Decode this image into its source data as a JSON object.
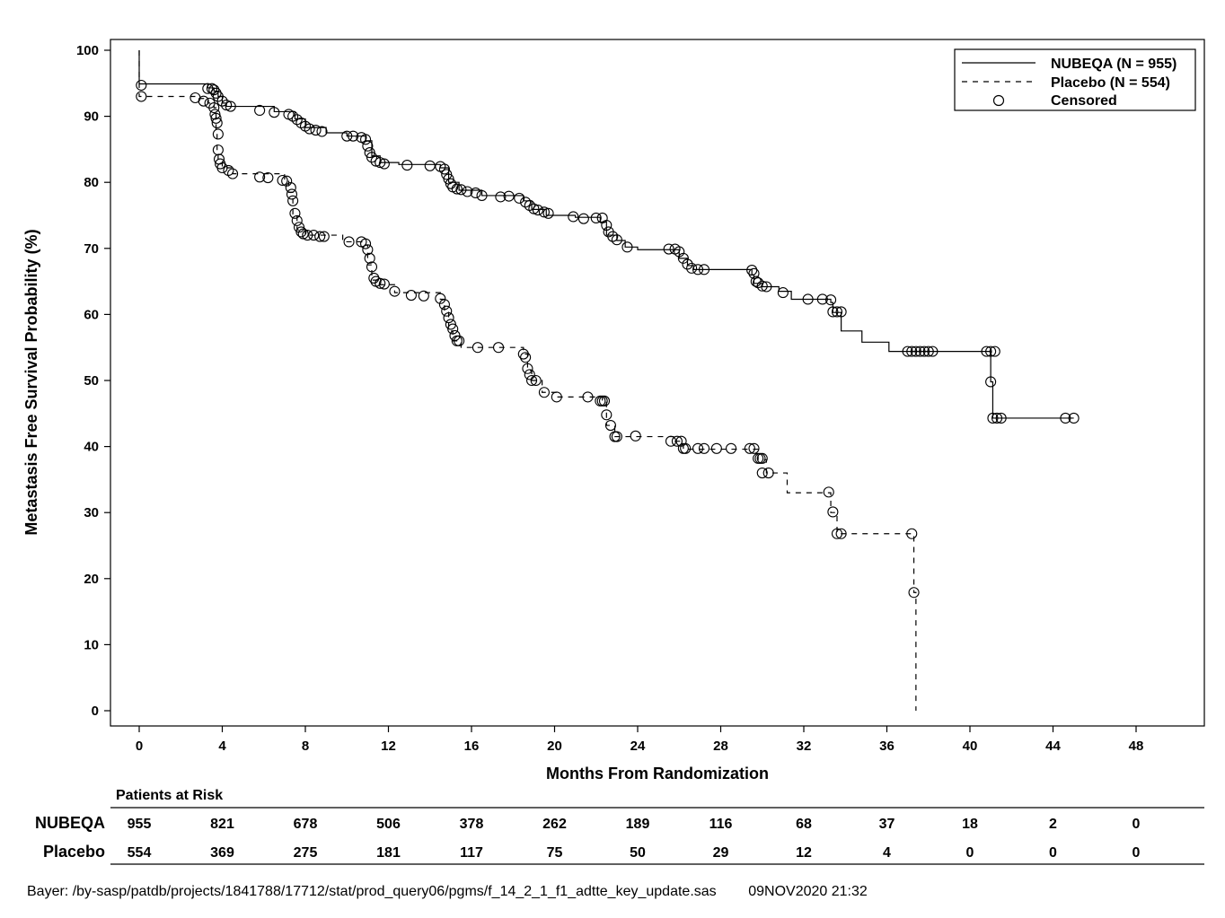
{
  "chart_data": {
    "type": "line",
    "xlabel": "Months From Randomization",
    "ylabel": "Metastasis Free Survival Probability (%)",
    "xlim": [
      0,
      48
    ],
    "ylim": [
      0,
      100
    ],
    "xticks": [
      0,
      4,
      8,
      12,
      16,
      20,
      24,
      28,
      32,
      36,
      40,
      44,
      48
    ],
    "yticks": [
      0,
      10,
      20,
      30,
      40,
      50,
      60,
      70,
      80,
      90,
      100
    ],
    "grid": false,
    "legend_position": "top-right",
    "legend": [
      {
        "label": "NUBEQA (N = 955)",
        "style": "solid"
      },
      {
        "label": "Placebo (N = 554)",
        "style": "dashed"
      },
      {
        "label": "Censored",
        "style": "circle"
      }
    ],
    "series": [
      {
        "name": "NUBEQA (N = 955)",
        "style": "solid",
        "steps": [
          [
            0,
            94.9
          ],
          [
            3.3,
            94.3
          ],
          [
            3.6,
            93.8
          ],
          [
            3.8,
            93.0
          ],
          [
            4.0,
            92.0
          ],
          [
            4.2,
            91.5
          ],
          [
            6.5,
            90.7
          ],
          [
            7.5,
            89.6
          ],
          [
            8.0,
            88.3
          ],
          [
            9.0,
            87.5
          ],
          [
            10.0,
            87.0
          ],
          [
            10.9,
            86.3
          ],
          [
            11.2,
            84.0
          ],
          [
            11.6,
            83.0
          ],
          [
            12.5,
            82.7
          ],
          [
            14.5,
            82.2
          ],
          [
            14.9,
            80.0
          ],
          [
            15.4,
            78.8
          ],
          [
            16.5,
            78.0
          ],
          [
            18.5,
            77.2
          ],
          [
            18.9,
            75.9
          ],
          [
            19.6,
            75.0
          ],
          [
            21.0,
            74.7
          ],
          [
            22.2,
            74.0
          ],
          [
            22.5,
            72.0
          ],
          [
            23.0,
            71.2
          ],
          [
            23.4,
            70.2
          ],
          [
            24.0,
            69.8
          ],
          [
            25.8,
            69.8
          ],
          [
            26.0,
            68.5
          ],
          [
            26.4,
            67.4
          ],
          [
            26.7,
            66.8
          ],
          [
            29.5,
            66.0
          ],
          [
            29.6,
            64.7
          ],
          [
            30.0,
            64.2
          ],
          [
            30.8,
            63.5
          ],
          [
            31.4,
            62.3
          ],
          [
            33.3,
            61.8
          ],
          [
            33.4,
            60.3
          ],
          [
            33.8,
            57.5
          ],
          [
            34.8,
            55.8
          ],
          [
            36.1,
            54.4
          ],
          [
            41.0,
            49.8
          ],
          [
            41.1,
            44.3
          ]
        ],
        "end_x": 45.0,
        "censored": [
          [
            0.1,
            94.7
          ],
          [
            3.3,
            94.2
          ],
          [
            3.5,
            94.2
          ],
          [
            3.6,
            94.0
          ],
          [
            3.7,
            93.5
          ],
          [
            3.8,
            93.0
          ],
          [
            4.0,
            92.3
          ],
          [
            4.2,
            91.7
          ],
          [
            4.4,
            91.5
          ],
          [
            5.8,
            90.9
          ],
          [
            6.5,
            90.6
          ],
          [
            7.2,
            90.3
          ],
          [
            7.4,
            90.0
          ],
          [
            7.6,
            89.5
          ],
          [
            7.8,
            89.0
          ],
          [
            8.0,
            88.5
          ],
          [
            8.2,
            88.1
          ],
          [
            8.5,
            87.9
          ],
          [
            8.8,
            87.7
          ],
          [
            10.0,
            87.0
          ],
          [
            10.3,
            87.0
          ],
          [
            10.7,
            86.8
          ],
          [
            10.9,
            86.5
          ],
          [
            11.0,
            85.5
          ],
          [
            11.1,
            84.5
          ],
          [
            11.2,
            83.8
          ],
          [
            11.4,
            83.2
          ],
          [
            11.6,
            83.0
          ],
          [
            11.8,
            82.8
          ],
          [
            12.9,
            82.6
          ],
          [
            14.0,
            82.5
          ],
          [
            14.5,
            82.4
          ],
          [
            14.7,
            82.0
          ],
          [
            14.8,
            81.2
          ],
          [
            14.9,
            80.5
          ],
          [
            15.0,
            79.8
          ],
          [
            15.1,
            79.3
          ],
          [
            15.3,
            79.0
          ],
          [
            15.5,
            78.9
          ],
          [
            15.8,
            78.6
          ],
          [
            16.2,
            78.4
          ],
          [
            16.5,
            78.0
          ],
          [
            17.4,
            77.8
          ],
          [
            17.8,
            77.9
          ],
          [
            18.3,
            77.6
          ],
          [
            18.6,
            77.0
          ],
          [
            18.8,
            76.5
          ],
          [
            19.0,
            76.0
          ],
          [
            19.2,
            75.8
          ],
          [
            19.5,
            75.5
          ],
          [
            19.7,
            75.3
          ],
          [
            20.9,
            74.8
          ],
          [
            21.4,
            74.5
          ],
          [
            22.0,
            74.6
          ],
          [
            22.3,
            74.6
          ],
          [
            22.5,
            73.5
          ],
          [
            22.6,
            72.5
          ],
          [
            22.8,
            71.8
          ],
          [
            23.0,
            71.3
          ],
          [
            23.5,
            70.2
          ],
          [
            25.5,
            69.9
          ],
          [
            25.8,
            69.9
          ],
          [
            26.0,
            69.5
          ],
          [
            26.2,
            68.5
          ],
          [
            26.4,
            67.6
          ],
          [
            26.6,
            67.0
          ],
          [
            26.9,
            66.8
          ],
          [
            27.2,
            66.8
          ],
          [
            29.5,
            66.7
          ],
          [
            29.6,
            66.2
          ],
          [
            29.7,
            65.0
          ],
          [
            29.8,
            64.8
          ],
          [
            30.0,
            64.3
          ],
          [
            30.2,
            64.2
          ],
          [
            31.0,
            63.3
          ],
          [
            32.2,
            62.3
          ],
          [
            32.9,
            62.3
          ],
          [
            33.3,
            62.2
          ],
          [
            33.4,
            60.4
          ],
          [
            33.6,
            60.4
          ],
          [
            33.8,
            60.4
          ],
          [
            37.0,
            54.4
          ],
          [
            37.2,
            54.4
          ],
          [
            37.4,
            54.4
          ],
          [
            37.6,
            54.4
          ],
          [
            37.8,
            54.4
          ],
          [
            38.0,
            54.4
          ],
          [
            38.2,
            54.4
          ],
          [
            40.8,
            54.4
          ],
          [
            41.0,
            54.4
          ],
          [
            41.2,
            54.4
          ],
          [
            41.0,
            49.8
          ],
          [
            41.1,
            44.3
          ],
          [
            41.3,
            44.3
          ],
          [
            41.5,
            44.3
          ],
          [
            44.6,
            44.3
          ],
          [
            45.0,
            44.3
          ]
        ]
      },
      {
        "name": "Placebo (N = 554)",
        "style": "dashed",
        "steps": [
          [
            0,
            93.0
          ],
          [
            2.8,
            92.7
          ],
          [
            3.3,
            92.0
          ],
          [
            3.6,
            91.3
          ],
          [
            3.7,
            88.0
          ],
          [
            3.75,
            84.8
          ],
          [
            3.8,
            83.5
          ],
          [
            4.0,
            82.2
          ],
          [
            4.5,
            81.3
          ],
          [
            7.0,
            80.3
          ],
          [
            7.2,
            78.5
          ],
          [
            7.4,
            75.2
          ],
          [
            7.6,
            72.8
          ],
          [
            8.0,
            72.0
          ],
          [
            9.8,
            71.0
          ],
          [
            10.8,
            70.5
          ],
          [
            11.0,
            67.5
          ],
          [
            11.2,
            65.2
          ],
          [
            11.5,
            64.5
          ],
          [
            12.3,
            63.3
          ],
          [
            14.5,
            62.3
          ],
          [
            14.7,
            60.5
          ],
          [
            14.9,
            57.5
          ],
          [
            15.1,
            56.0
          ],
          [
            15.5,
            55.0
          ],
          [
            18.5,
            54.0
          ],
          [
            18.7,
            51.5
          ],
          [
            18.9,
            50.0
          ],
          [
            19.4,
            48.2
          ],
          [
            20.1,
            47.5
          ],
          [
            22.3,
            46.8
          ],
          [
            22.5,
            43.2
          ],
          [
            22.9,
            41.5
          ],
          [
            25.8,
            40.8
          ],
          [
            26.2,
            39.6
          ],
          [
            29.8,
            38.0
          ],
          [
            30.2,
            36.0
          ],
          [
            31.2,
            33.0
          ],
          [
            33.3,
            30.0
          ],
          [
            33.6,
            26.8
          ],
          [
            37.3,
            17.9
          ],
          [
            37.4,
            0.0
          ]
        ],
        "end_x": 37.4,
        "censored": [
          [
            0.1,
            93.0
          ],
          [
            2.7,
            92.8
          ],
          [
            3.1,
            92.3
          ],
          [
            3.4,
            92.0
          ],
          [
            3.6,
            91.3
          ],
          [
            3.65,
            90.3
          ],
          [
            3.7,
            89.7
          ],
          [
            3.75,
            89.0
          ],
          [
            3.8,
            87.3
          ],
          [
            3.8,
            84.9
          ],
          [
            3.85,
            83.5
          ],
          [
            3.9,
            82.8
          ],
          [
            4.0,
            82.2
          ],
          [
            4.3,
            81.8
          ],
          [
            4.5,
            81.3
          ],
          [
            5.8,
            80.8
          ],
          [
            6.2,
            80.7
          ],
          [
            6.9,
            80.3
          ],
          [
            7.1,
            80.2
          ],
          [
            7.3,
            79.2
          ],
          [
            7.35,
            78.2
          ],
          [
            7.4,
            77.2
          ],
          [
            7.5,
            75.3
          ],
          [
            7.6,
            74.2
          ],
          [
            7.7,
            73.2
          ],
          [
            7.8,
            72.5
          ],
          [
            7.9,
            72.2
          ],
          [
            8.1,
            72.0
          ],
          [
            8.4,
            72.0
          ],
          [
            8.7,
            71.8
          ],
          [
            8.9,
            71.8
          ],
          [
            10.1,
            71.0
          ],
          [
            10.7,
            71.0
          ],
          [
            10.9,
            70.7
          ],
          [
            11.0,
            69.8
          ],
          [
            11.1,
            68.5
          ],
          [
            11.2,
            67.2
          ],
          [
            11.3,
            65.5
          ],
          [
            11.4,
            65.0
          ],
          [
            11.6,
            64.7
          ],
          [
            11.8,
            64.6
          ],
          [
            12.3,
            63.5
          ],
          [
            13.1,
            62.9
          ],
          [
            13.7,
            62.8
          ],
          [
            14.5,
            62.4
          ],
          [
            14.7,
            61.5
          ],
          [
            14.8,
            60.5
          ],
          [
            14.9,
            59.5
          ],
          [
            15.0,
            58.5
          ],
          [
            15.1,
            57.8
          ],
          [
            15.2,
            56.8
          ],
          [
            15.3,
            56.0
          ],
          [
            15.4,
            56.0
          ],
          [
            16.3,
            55.0
          ],
          [
            17.3,
            55.0
          ],
          [
            18.5,
            54.0
          ],
          [
            18.6,
            53.5
          ],
          [
            18.7,
            51.8
          ],
          [
            18.8,
            50.9
          ],
          [
            18.9,
            50.0
          ],
          [
            19.1,
            50.0
          ],
          [
            19.5,
            48.2
          ],
          [
            20.1,
            47.5
          ],
          [
            21.6,
            47.5
          ],
          [
            22.2,
            46.9
          ],
          [
            22.3,
            46.9
          ],
          [
            22.4,
            46.9
          ],
          [
            22.5,
            44.8
          ],
          [
            22.7,
            43.2
          ],
          [
            22.9,
            41.5
          ],
          [
            23.0,
            41.5
          ],
          [
            23.9,
            41.6
          ],
          [
            25.6,
            40.8
          ],
          [
            25.9,
            40.8
          ],
          [
            26.1,
            40.8
          ],
          [
            26.2,
            39.7
          ],
          [
            26.3,
            39.7
          ],
          [
            26.9,
            39.7
          ],
          [
            27.2,
            39.7
          ],
          [
            27.8,
            39.7
          ],
          [
            28.5,
            39.7
          ],
          [
            29.4,
            39.7
          ],
          [
            29.6,
            39.7
          ],
          [
            29.8,
            38.2
          ],
          [
            29.9,
            38.2
          ],
          [
            30.0,
            38.2
          ],
          [
            30.0,
            36.0
          ],
          [
            30.3,
            36.0
          ],
          [
            33.2,
            33.1
          ],
          [
            33.4,
            30.1
          ],
          [
            33.6,
            26.8
          ],
          [
            33.8,
            26.8
          ],
          [
            37.2,
            26.8
          ],
          [
            37.3,
            17.9
          ]
        ]
      }
    ]
  },
  "risk_table": {
    "title": "Patients at Risk",
    "rows": [
      {
        "label": "NUBEQA",
        "values": [
          "955",
          "821",
          "678",
          "506",
          "378",
          "262",
          "189",
          "116",
          "68",
          "37",
          "18",
          "2",
          "0"
        ]
      },
      {
        "label": "Placebo",
        "values": [
          "554",
          "369",
          "275",
          "181",
          "117",
          "75",
          "50",
          "29",
          "12",
          "4",
          "0",
          "0",
          "0"
        ]
      }
    ]
  },
  "footer": "Bayer: /by-sasp/patdb/projects/1841788/17712/stat/prod_query06/pgms/f_14_2_1_f1_adtte_key_update.sas        09NOV2020 21:32"
}
